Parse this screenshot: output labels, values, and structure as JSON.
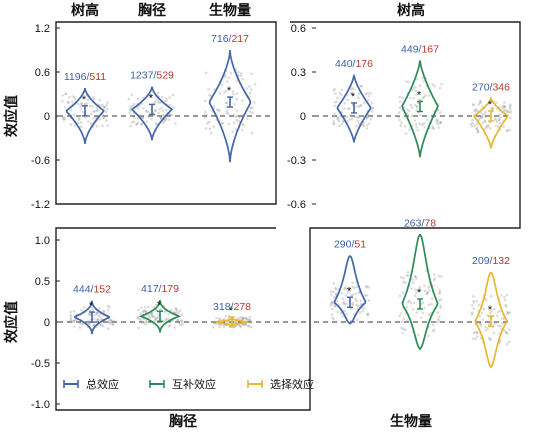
{
  "chart_data": [
    {
      "type": "violin",
      "ylabel": "效应值",
      "ylim": [
        -1.2,
        1.2
      ],
      "yticks": [
        "1.2",
        "0.6",
        "0",
        "-0.6",
        "-1.2"
      ],
      "violins": [
        {
          "label": "树高",
          "color": "#4466aa",
          "n_pos": "1196",
          "n_neg": "511",
          "mean": 0.07,
          "lo": -0.38,
          "hi": 0.38
        },
        {
          "label": "胸径",
          "color": "#4466aa",
          "n_pos": "1237",
          "n_neg": "529",
          "mean": 0.09,
          "lo": -0.33,
          "hi": 0.4
        },
        {
          "label": "生物量",
          "color": "#4466aa",
          "n_pos": "716",
          "n_neg": "217",
          "mean": 0.19,
          "lo": -0.63,
          "hi": 0.9
        }
      ]
    },
    {
      "type": "violin",
      "title": "树高",
      "ylim": [
        -0.6,
        0.6
      ],
      "yticks": [
        "0.6",
        "0.3",
        "0",
        "-0.3",
        "-0.6"
      ],
      "violins": [
        {
          "color": "#4466aa",
          "n_pos": "440",
          "n_neg": "176",
          "mean": 0.055,
          "lo": -0.18,
          "hi": 0.28
        },
        {
          "color": "#2e8b57",
          "n_pos": "449",
          "n_neg": "167",
          "mean": 0.065,
          "lo": -0.28,
          "hi": 0.38
        },
        {
          "color": "#e8b830",
          "n_pos": "270",
          "n_neg": "346",
          "mean": 0.0,
          "lo": -0.22,
          "hi": 0.12
        }
      ]
    },
    {
      "type": "violin",
      "ylabel": "效应值",
      "xlabel": "胸径",
      "ylim": [
        -1.0,
        1.0
      ],
      "yticks": [
        "1.0",
        "0.5",
        "0",
        "-0.5",
        "-1.0"
      ],
      "violins": [
        {
          "color": "#4466aa",
          "n_pos": "444",
          "n_neg": "152",
          "mean": 0.06,
          "lo": -0.15,
          "hi": 0.26
        },
        {
          "color": "#2e8b57",
          "n_pos": "417",
          "n_neg": "179",
          "mean": 0.07,
          "lo": -0.13,
          "hi": 0.27
        },
        {
          "color": "#e8b830",
          "n_pos": "318",
          "n_neg": "278",
          "mean": 0.0,
          "lo": -0.06,
          "hi": 0.05
        }
      ]
    },
    {
      "type": "violin",
      "xlabel": "生物量",
      "ylim": [
        -1.0,
        1.0
      ],
      "violins": [
        {
          "color": "#4466aa",
          "n_pos": "290",
          "n_neg": "51",
          "mean": 0.24,
          "lo": -0.02,
          "hi": 0.81
        },
        {
          "color": "#2e8b57",
          "n_pos": "263",
          "n_neg": "78",
          "mean": 0.22,
          "lo": -0.33,
          "hi": 1.07
        },
        {
          "color": "#e8b830",
          "n_pos": "209",
          "n_neg": "132",
          "mean": 0.01,
          "lo": -0.55,
          "hi": 0.61
        }
      ]
    }
  ],
  "legend": [
    {
      "label": "总效应",
      "color": "#4466aa"
    },
    {
      "label": "互补效应",
      "color": "#2e8b57"
    },
    {
      "label": "选择效应",
      "color": "#e8b830"
    }
  ],
  "count_neg_color": "#b33a2a"
}
